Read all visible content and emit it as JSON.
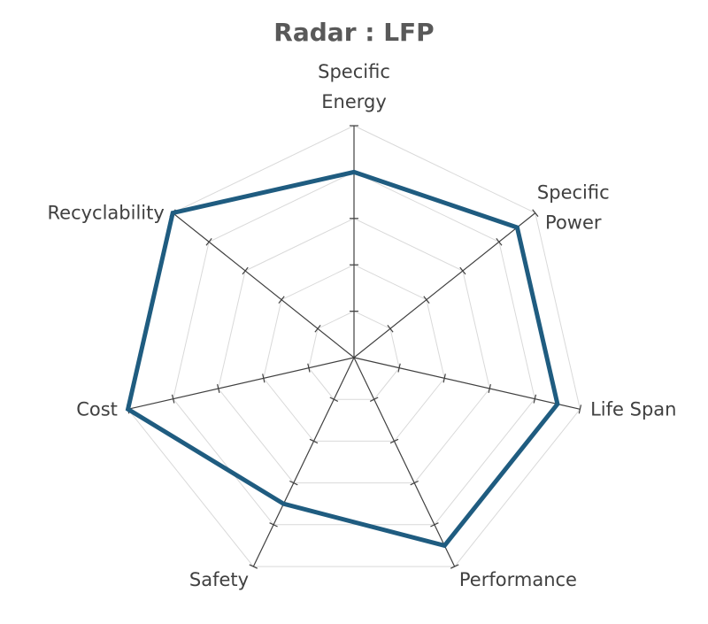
{
  "chart_data": {
    "type": "radar",
    "title": "Radar : LFP",
    "axes": [
      [
        "Specific",
        "Energy"
      ],
      [
        "Specific",
        "Power"
      ],
      [
        "Life Span"
      ],
      [
        "Performance"
      ],
      [
        "Safety"
      ],
      [
        "Cost"
      ],
      [
        "Recyclability"
      ]
    ],
    "categories": [
      "Specific Energy",
      "Specific Power",
      "Life Span",
      "Performance",
      "Safety",
      "Cost",
      "Recyclability"
    ],
    "rmax": 5,
    "grid_levels": 5,
    "grid": true,
    "series": [
      {
        "values": [
          4,
          4.5,
          4.5,
          4.5,
          3.5,
          5,
          5
        ],
        "color": "#1f5c80"
      }
    ]
  }
}
